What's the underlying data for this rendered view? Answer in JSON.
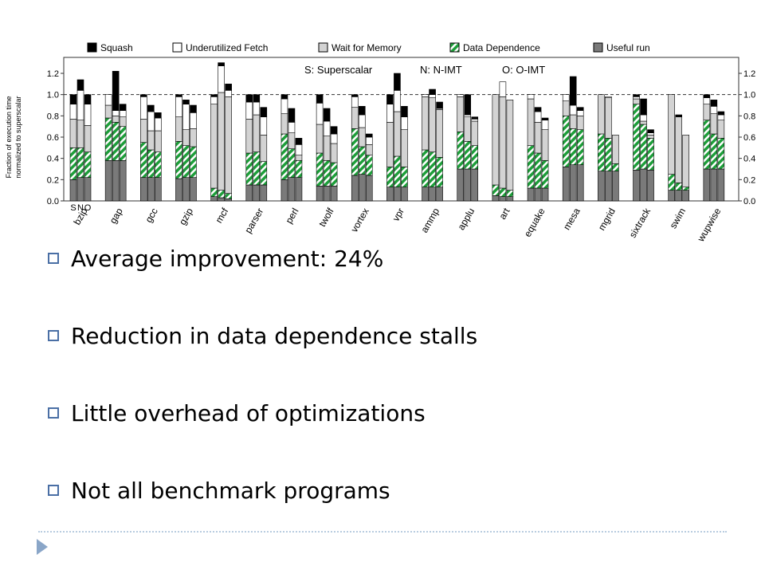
{
  "chart_data": {
    "type": "bar",
    "stacked": true,
    "y_label": "Fraction of execution time normalized to superscalar",
    "ylim": [
      0,
      1.3
    ],
    "yticks": [
      "0.0",
      "0.2",
      "0.4",
      "0.6",
      "0.8",
      "1.0",
      "1.2"
    ],
    "reference_line": 1.0,
    "variant_labels": [
      "S",
      "N",
      "O"
    ],
    "annotations": [
      "S: Superscalar",
      "N: N-IMT",
      "O: O-IMT"
    ],
    "legend": [
      {
        "name": "Squash",
        "color": "#000000"
      },
      {
        "name": "Underutilized Fetch",
        "color": "#ffffff"
      },
      {
        "name": "Wait for Memory",
        "color": "#d3d3d3"
      },
      {
        "name": "Data Dependence",
        "color": "#1e9e3a",
        "hatch": true
      },
      {
        "name": "Useful run",
        "color": "#7a7a7a"
      }
    ],
    "series_order": [
      "Useful run",
      "Data Dependence",
      "Wait for Memory",
      "Underutilized Fetch",
      "Squash"
    ],
    "categories": [
      "bzip",
      "gap",
      "gcc",
      "gzip",
      "mcf",
      "parser",
      "perl",
      "twolf",
      "vortex",
      "vpr",
      "ammp",
      "applu",
      "art",
      "equake",
      "mesa",
      "mgrid",
      "sixtrack",
      "swim",
      "wupwise"
    ],
    "bars": [
      {
        "benchmark": "bzip",
        "variant": "S",
        "values": [
          0.2,
          0.3,
          0.27,
          0.14,
          0.09
        ]
      },
      {
        "benchmark": "bzip",
        "variant": "N",
        "values": [
          0.22,
          0.28,
          0.26,
          0.28,
          0.1
        ]
      },
      {
        "benchmark": "bzip",
        "variant": "O",
        "values": [
          0.22,
          0.24,
          0.25,
          0.2,
          0.09
        ]
      },
      {
        "benchmark": "gap",
        "variant": "S",
        "values": [
          0.38,
          0.4,
          0.12,
          0.1,
          0.0
        ]
      },
      {
        "benchmark": "gap",
        "variant": "N",
        "values": [
          0.38,
          0.36,
          0.06,
          0.05,
          0.37
        ]
      },
      {
        "benchmark": "gap",
        "variant": "O",
        "values": [
          0.38,
          0.32,
          0.09,
          0.06,
          0.06
        ]
      },
      {
        "benchmark": "gcc",
        "variant": "S",
        "values": [
          0.22,
          0.33,
          0.22,
          0.21,
          0.02
        ]
      },
      {
        "benchmark": "gcc",
        "variant": "N",
        "values": [
          0.22,
          0.26,
          0.18,
          0.18,
          0.06
        ]
      },
      {
        "benchmark": "gcc",
        "variant": "O",
        "values": [
          0.22,
          0.24,
          0.2,
          0.12,
          0.05
        ]
      },
      {
        "benchmark": "gzip",
        "variant": "S",
        "values": [
          0.21,
          0.35,
          0.23,
          0.19,
          0.02
        ]
      },
      {
        "benchmark": "gzip",
        "variant": "N",
        "values": [
          0.22,
          0.3,
          0.15,
          0.24,
          0.04
        ]
      },
      {
        "benchmark": "gzip",
        "variant": "O",
        "values": [
          0.22,
          0.29,
          0.17,
          0.15,
          0.07
        ]
      },
      {
        "benchmark": "mcf",
        "variant": "S",
        "values": [
          0.04,
          0.08,
          0.79,
          0.07,
          0.02
        ]
      },
      {
        "benchmark": "mcf",
        "variant": "N",
        "values": [
          0.03,
          0.07,
          0.92,
          0.25,
          0.03
        ]
      },
      {
        "benchmark": "mcf",
        "variant": "O",
        "values": [
          0.02,
          0.05,
          0.91,
          0.06,
          0.06
        ]
      },
      {
        "benchmark": "parser",
        "variant": "S",
        "values": [
          0.15,
          0.3,
          0.32,
          0.16,
          0.07
        ]
      },
      {
        "benchmark": "parser",
        "variant": "N",
        "values": [
          0.15,
          0.31,
          0.35,
          0.12,
          0.07
        ]
      },
      {
        "benchmark": "parser",
        "variant": "O",
        "values": [
          0.15,
          0.22,
          0.25,
          0.17,
          0.09
        ]
      },
      {
        "benchmark": "perl",
        "variant": "S",
        "values": [
          0.2,
          0.43,
          0.19,
          0.14,
          0.04
        ]
      },
      {
        "benchmark": "perl",
        "variant": "N",
        "values": [
          0.22,
          0.27,
          0.15,
          0.1,
          0.13
        ]
      },
      {
        "benchmark": "perl",
        "variant": "O",
        "values": [
          0.22,
          0.16,
          0.05,
          0.1,
          0.06
        ]
      },
      {
        "benchmark": "twolf",
        "variant": "S",
        "values": [
          0.14,
          0.31,
          0.27,
          0.2,
          0.08
        ]
      },
      {
        "benchmark": "twolf",
        "variant": "N",
        "values": [
          0.14,
          0.24,
          0.23,
          0.14,
          0.12
        ]
      },
      {
        "benchmark": "twolf",
        "variant": "O",
        "values": [
          0.14,
          0.22,
          0.18,
          0.09,
          0.07
        ]
      },
      {
        "benchmark": "vortex",
        "variant": "S",
        "values": [
          0.24,
          0.44,
          0.2,
          0.1,
          0.02
        ]
      },
      {
        "benchmark": "vortex",
        "variant": "N",
        "values": [
          0.25,
          0.26,
          0.18,
          0.12,
          0.08
        ]
      },
      {
        "benchmark": "vortex",
        "variant": "O",
        "values": [
          0.24,
          0.19,
          0.1,
          0.07,
          0.03
        ]
      },
      {
        "benchmark": "vpr",
        "variant": "S",
        "values": [
          0.13,
          0.19,
          0.42,
          0.17,
          0.09
        ]
      },
      {
        "benchmark": "vpr",
        "variant": "N",
        "values": [
          0.13,
          0.29,
          0.42,
          0.2,
          0.16
        ]
      },
      {
        "benchmark": "vpr",
        "variant": "O",
        "values": [
          0.13,
          0.19,
          0.35,
          0.12,
          0.1
        ]
      },
      {
        "benchmark": "ammp",
        "variant": "S",
        "values": [
          0.13,
          0.35,
          0.5,
          0.02,
          0.0
        ]
      },
      {
        "benchmark": "ammp",
        "variant": "N",
        "values": [
          0.13,
          0.33,
          0.51,
          0.03,
          0.05
        ]
      },
      {
        "benchmark": "ammp",
        "variant": "O",
        "values": [
          0.13,
          0.28,
          0.45,
          0.01,
          0.06
        ]
      },
      {
        "benchmark": "applu",
        "variant": "S",
        "values": [
          0.3,
          0.35,
          0.33,
          0.02,
          0.0
        ]
      },
      {
        "benchmark": "applu",
        "variant": "N",
        "values": [
          0.3,
          0.26,
          0.23,
          0.02,
          0.19
        ]
      },
      {
        "benchmark": "applu",
        "variant": "O",
        "values": [
          0.3,
          0.22,
          0.23,
          0.02,
          0.02
        ]
      },
      {
        "benchmark": "art",
        "variant": "S",
        "values": [
          0.05,
          0.1,
          0.85,
          0.0,
          0.0
        ]
      },
      {
        "benchmark": "art",
        "variant": "N",
        "values": [
          0.04,
          0.08,
          0.86,
          0.14,
          0.0
        ]
      },
      {
        "benchmark": "art",
        "variant": "O",
        "values": [
          0.04,
          0.06,
          0.85,
          0.0,
          0.0
        ]
      },
      {
        "benchmark": "equake",
        "variant": "S",
        "values": [
          0.12,
          0.4,
          0.44,
          0.04,
          0.0
        ]
      },
      {
        "benchmark": "equake",
        "variant": "N",
        "values": [
          0.12,
          0.33,
          0.29,
          0.1,
          0.04
        ]
      },
      {
        "benchmark": "equake",
        "variant": "O",
        "values": [
          0.12,
          0.26,
          0.29,
          0.09,
          0.02
        ]
      },
      {
        "benchmark": "mesa",
        "variant": "S",
        "values": [
          0.32,
          0.48,
          0.14,
          0.06,
          0.0
        ]
      },
      {
        "benchmark": "mesa",
        "variant": "N",
        "values": [
          0.34,
          0.34,
          0.13,
          0.09,
          0.27
        ]
      },
      {
        "benchmark": "mesa",
        "variant": "O",
        "values": [
          0.34,
          0.33,
          0.13,
          0.05,
          0.03
        ]
      },
      {
        "benchmark": "mgrid",
        "variant": "S",
        "values": [
          0.28,
          0.35,
          0.37,
          0.0,
          0.0
        ]
      },
      {
        "benchmark": "mgrid",
        "variant": "N",
        "values": [
          0.28,
          0.31,
          0.38,
          0.01,
          0.0
        ]
      },
      {
        "benchmark": "mgrid",
        "variant": "O",
        "values": [
          0.28,
          0.07,
          0.27,
          0.0,
          0.0
        ]
      },
      {
        "benchmark": "sixtrack",
        "variant": "S",
        "values": [
          0.29,
          0.62,
          0.05,
          0.02,
          0.02
        ]
      },
      {
        "benchmark": "sixtrack",
        "variant": "N",
        "values": [
          0.3,
          0.42,
          0.03,
          0.06,
          0.15
        ]
      },
      {
        "benchmark": "sixtrack",
        "variant": "O",
        "values": [
          0.29,
          0.3,
          0.03,
          0.02,
          0.03
        ]
      },
      {
        "benchmark": "swim",
        "variant": "S",
        "values": [
          0.1,
          0.15,
          0.75,
          0.0,
          0.0
        ]
      },
      {
        "benchmark": "swim",
        "variant": "N",
        "values": [
          0.1,
          0.07,
          0.62,
          0.0,
          0.02
        ]
      },
      {
        "benchmark": "swim",
        "variant": "O",
        "values": [
          0.1,
          0.03,
          0.49,
          0.0,
          0.0
        ]
      },
      {
        "benchmark": "wupwise",
        "variant": "S",
        "values": [
          0.3,
          0.46,
          0.15,
          0.06,
          0.03
        ]
      },
      {
        "benchmark": "wupwise",
        "variant": "N",
        "values": [
          0.3,
          0.33,
          0.19,
          0.07,
          0.06
        ]
      },
      {
        "benchmark": "wupwise",
        "variant": "O",
        "values": [
          0.3,
          0.29,
          0.17,
          0.05,
          0.03
        ]
      }
    ]
  },
  "bullets": [
    "Average improvement: 24%",
    "Reduction in data dependence stalls",
    "Little overhead of optimizations",
    "Not all benchmark programs"
  ],
  "colors": {
    "bullet_border": "#4a6fa5",
    "footer_rule": "#b8cce0",
    "footer_arrow": "#8aa6c8"
  }
}
